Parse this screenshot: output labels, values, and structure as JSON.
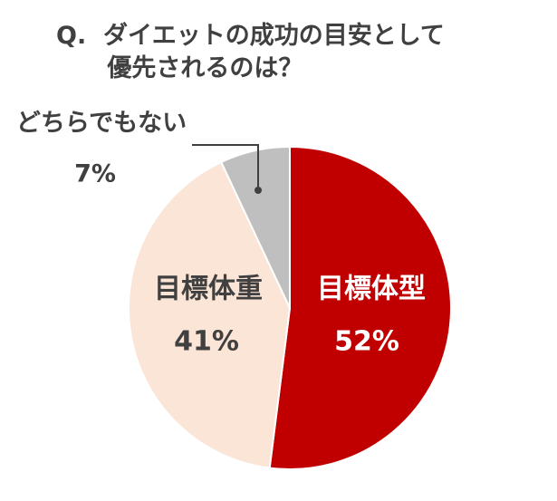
{
  "chart_data": {
    "type": "pie",
    "title": "Q.  ダイエットの成功の目安として\n      優先されるのは？",
    "categories": [
      "目標体型",
      "目標体重",
      "どちらでもない"
    ],
    "values": [
      52,
      41,
      7
    ],
    "value_labels": [
      "52%",
      "41%",
      "7%"
    ],
    "colors": [
      "#c00000",
      "#fbe5d6",
      "#bfbfbf"
    ],
    "label_colors": [
      "#ffffff",
      "#404040",
      "#404040"
    ]
  }
}
